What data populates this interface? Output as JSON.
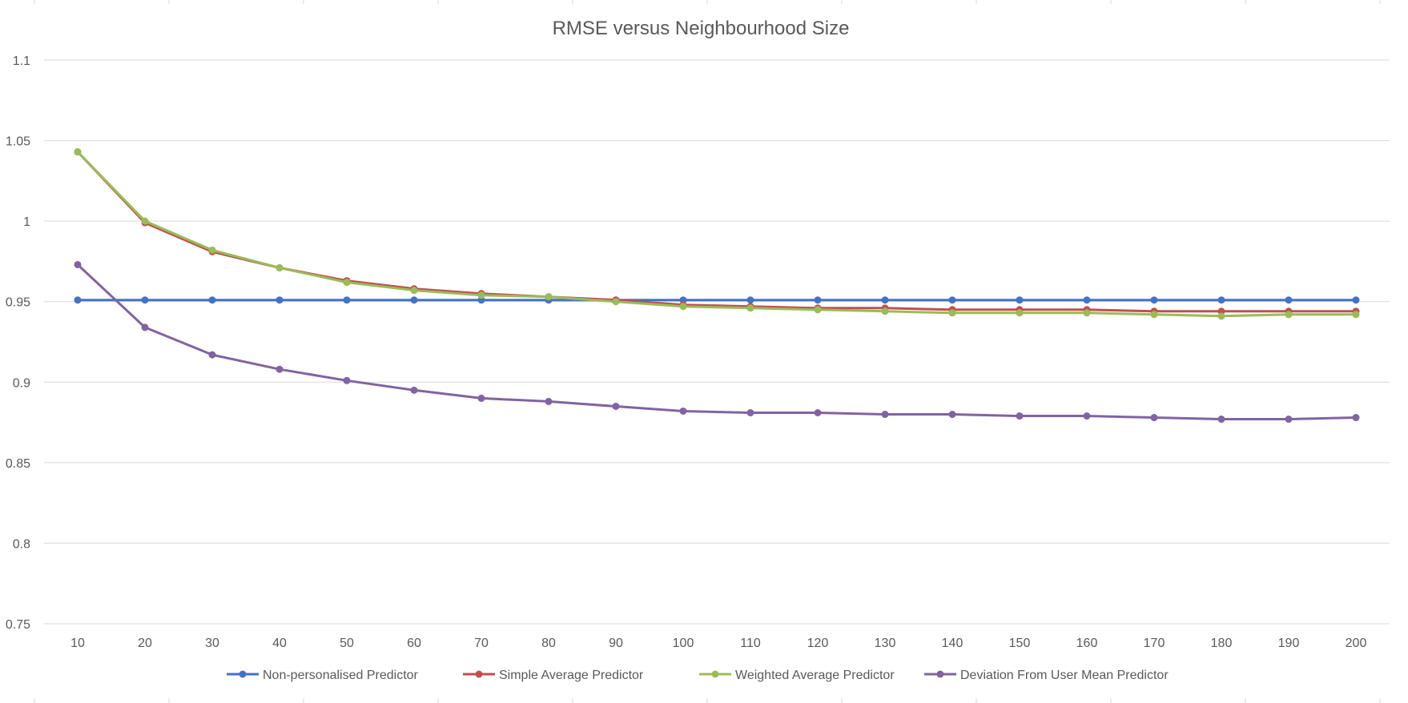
{
  "chart_data": {
    "type": "line",
    "title": "RMSE versus Neighbourhood Size",
    "xlabel": "",
    "ylabel": "",
    "x": [
      10,
      20,
      30,
      40,
      50,
      60,
      70,
      80,
      90,
      100,
      110,
      120,
      130,
      140,
      150,
      160,
      170,
      180,
      190,
      200
    ],
    "ylim": [
      0.75,
      1.1
    ],
    "yticks": [
      "0.75",
      "0.8",
      "0.85",
      "0.9",
      "0.95",
      "1",
      "1.05",
      "1.1"
    ],
    "grid": true,
    "legend_position": "bottom",
    "series": [
      {
        "name": "Non-personalised Predictor",
        "color": "#4472C4",
        "values": [
          0.951,
          0.951,
          0.951,
          0.951,
          0.951,
          0.951,
          0.951,
          0.951,
          0.951,
          0.951,
          0.951,
          0.951,
          0.951,
          0.951,
          0.951,
          0.951,
          0.951,
          0.951,
          0.951,
          0.951
        ]
      },
      {
        "name": "Simple Average Predictor",
        "color": "#C0504D",
        "values": [
          1.043,
          0.999,
          0.981,
          0.971,
          0.963,
          0.958,
          0.955,
          0.953,
          0.951,
          0.948,
          0.947,
          0.946,
          0.946,
          0.945,
          0.945,
          0.945,
          0.944,
          0.944,
          0.944,
          0.944
        ]
      },
      {
        "name": "Weighted Average Predictor",
        "color": "#9BBB59",
        "values": [
          1.043,
          1.0,
          0.982,
          0.971,
          0.962,
          0.957,
          0.954,
          0.953,
          0.95,
          0.947,
          0.946,
          0.945,
          0.944,
          0.943,
          0.943,
          0.943,
          0.942,
          0.941,
          0.942,
          0.942
        ]
      },
      {
        "name": "Deviation From User Mean Predictor",
        "color": "#8064A2",
        "values": [
          0.973,
          0.934,
          0.917,
          0.908,
          0.901,
          0.895,
          0.89,
          0.888,
          0.885,
          0.882,
          0.881,
          0.881,
          0.88,
          0.88,
          0.879,
          0.879,
          0.878,
          0.877,
          0.877,
          0.878
        ]
      }
    ]
  }
}
